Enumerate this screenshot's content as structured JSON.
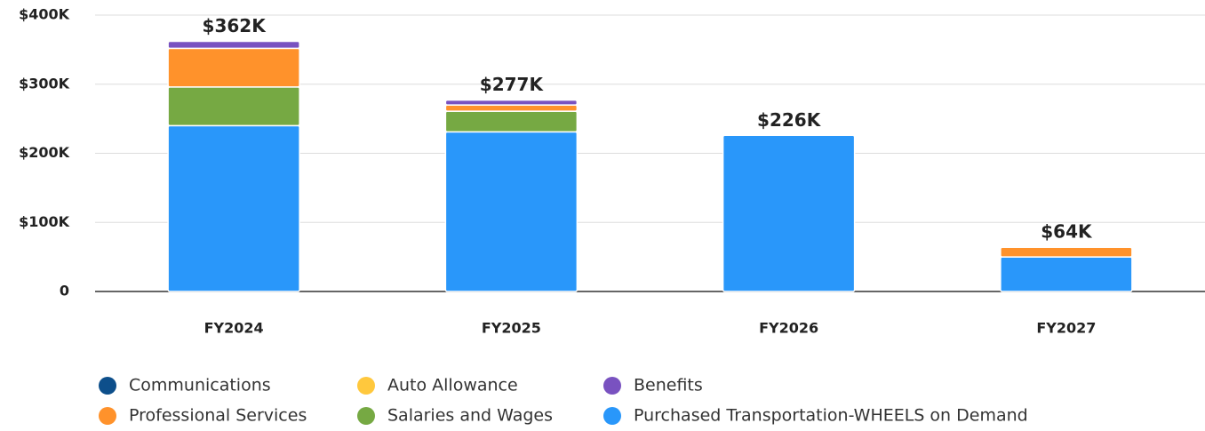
{
  "chart_data": {
    "type": "stacked_bar",
    "categories": [
      "FY2024",
      "FY2025",
      "FY2026",
      "FY2027"
    ],
    "series": [
      {
        "name": "Communications",
        "color": "#0d4f8b",
        "values": [
          0,
          0,
          0,
          0
        ]
      },
      {
        "name": "Auto Allowance",
        "color": "#ffc83d",
        "values": [
          0,
          0,
          0,
          0
        ]
      },
      {
        "name": "Benefits",
        "color": "#7952c0",
        "values": [
          10,
          7,
          0,
          0
        ]
      },
      {
        "name": "Professional Services",
        "color": "#ff922b",
        "values": [
          56,
          9,
          0,
          14
        ]
      },
      {
        "name": "Salaries and Wages",
        "color": "#76a943",
        "values": [
          56,
          30,
          0,
          0
        ]
      },
      {
        "name": "Purchased Transportation-WHEELS on Demand",
        "color": "#2997fa",
        "values": [
          240,
          231,
          226,
          50
        ]
      }
    ],
    "totals": {
      "values": [
        362,
        277,
        226,
        64
      ],
      "value_labels": [
        "$362K",
        "$277K",
        "$226K",
        "$64K"
      ]
    },
    "ylim": [
      0,
      400
    ],
    "yticks": [
      0,
      {
        "value": 100,
        "label": "$100K"
      },
      {
        "value": 200,
        "label": "$200K"
      },
      {
        "value": 300,
        "label": "$300K"
      },
      {
        "value": 400,
        "label": "$400K"
      }
    ],
    "grid": true,
    "legend": "bottom"
  }
}
